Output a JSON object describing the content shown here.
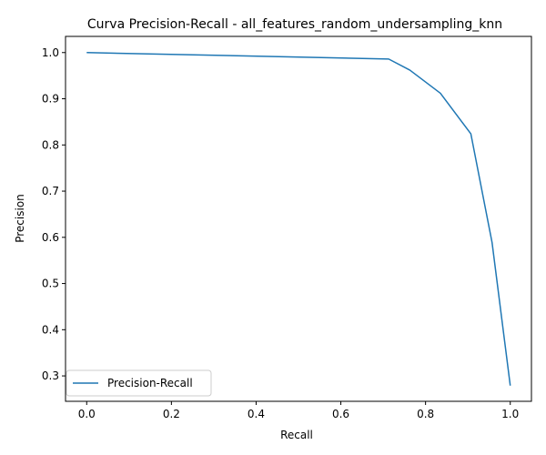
{
  "chart_data": {
    "type": "line",
    "title": "Curva Precision-Recall - all_features_random_undersampling_knn",
    "xlabel": "Recall",
    "ylabel": "Precision",
    "xlim": [
      -0.05,
      1.05
    ],
    "ylim": [
      0.245,
      1.035
    ],
    "xticks": [
      "0.0",
      "0.2",
      "0.4",
      "0.6",
      "0.8",
      "1.0"
    ],
    "yticks": [
      "0.3",
      "0.4",
      "0.5",
      "0.6",
      "0.7",
      "0.8",
      "0.9",
      "1.0"
    ],
    "grid": false,
    "legend_position": "lower left",
    "series": [
      {
        "name": "Precision-Recall",
        "color": "#1f77b4",
        "x": [
          0.0,
          0.713,
          0.763,
          0.835,
          0.907,
          0.957,
          1.0
        ],
        "y": [
          1.0,
          0.986,
          0.962,
          0.912,
          0.824,
          0.589,
          0.279
        ]
      }
    ]
  }
}
